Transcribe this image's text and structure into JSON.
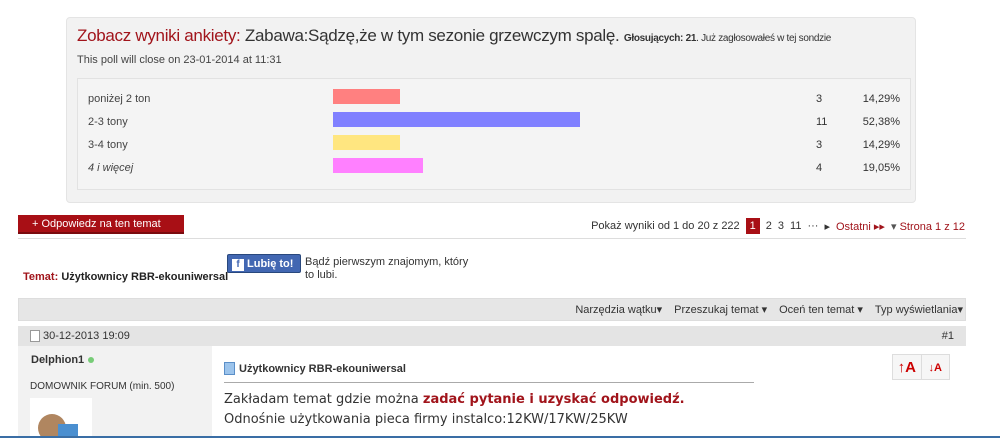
{
  "poll": {
    "label": "Zobacz wyniki ankiety",
    "question": "Zabawa:Sądzę,że w tym sezonie grzewczym spalę.",
    "voters_label": "Głosujących:",
    "voters": "21",
    "voted_note": "Już zagłosowałeś w tej sondzie",
    "close_text": "This poll will close on 23-01-2014 at 11:31",
    "options": [
      {
        "label": "poniżej 2 ton",
        "count": "3",
        "percent_text": "14,29%",
        "percent": 14.29,
        "color": "#ff8080"
      },
      {
        "label": "2-3 tony",
        "count": "11",
        "percent_text": "52,38%",
        "percent": 52.38,
        "color": "#8080ff"
      },
      {
        "label": "3-4 tony",
        "count": "3",
        "percent_text": "14,29%",
        "percent": 14.29,
        "color": "#ffe680"
      },
      {
        "label": "4 i więcej",
        "count": "4",
        "percent_text": "19,05%",
        "percent": 19.05,
        "color": "#ff80ff"
      }
    ]
  },
  "reply_button": "Odpowiedz na ten temat",
  "pager": {
    "results": "Pokaż wyniki od 1 do 20 z 222",
    "current": "1",
    "pages": [
      "2",
      "3",
      "11"
    ],
    "ellipsis": "···",
    "last": "Ostatni",
    "page_of": "Strona 1 z 12"
  },
  "topic": {
    "label": "Temat:",
    "title": "Użytkownicy RBR-ekouniwersal"
  },
  "facebook": {
    "button": "Lubię to!",
    "text": "Bądź pierwszym znajomym, który to lubi."
  },
  "toolbar": [
    "Narzędzia wątku",
    "Przeszukaj temat",
    "Oceń ten temat",
    "Typ wyświetlania"
  ],
  "post": {
    "date": "30-12-2013 19:09",
    "number": "#1",
    "username": "Delphion1",
    "rank": "DOMOWNIK FORUM (min. 500)",
    "title": "Użytkownicy RBR-ekouniwersal",
    "line1_start": "Zakładam temat gdzie można ",
    "line1_red": "zadać pytanie i uzyskać odpowiedź.",
    "line2": "Odnośnie użytkowania pieca firmy instalco:12KW/17KW/25KW"
  }
}
